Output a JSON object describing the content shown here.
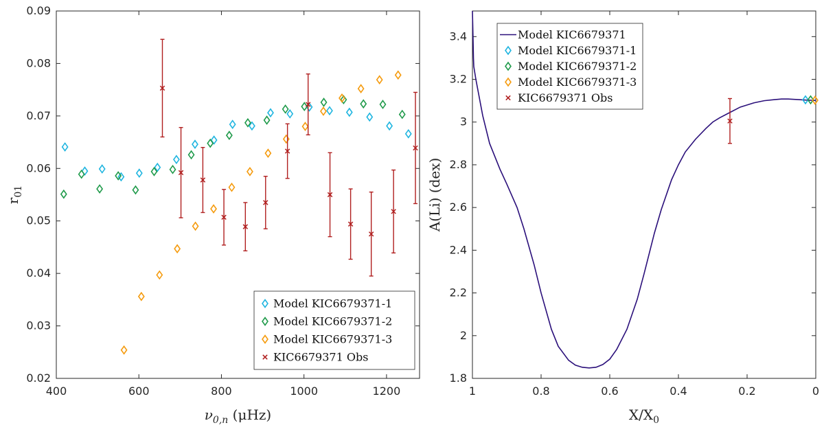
{
  "chart_data": [
    {
      "type": "scatter",
      "xlabel_main": "ν",
      "xlabel_sub": "0,n",
      "xlabel_unit": " (μHz)",
      "ylabel_main": "r",
      "ylabel_sub": "01",
      "xlim": [
        400,
        1280
      ],
      "ylim": [
        0.02,
        0.09
      ],
      "xticks": [
        400,
        600,
        800,
        1000,
        1200
      ],
      "yticks": [
        0.02,
        0.03,
        0.04,
        0.05,
        0.06,
        0.07,
        0.08,
        0.09
      ],
      "xtick_labels": [
        "400",
        "600",
        "800",
        "1000",
        "1200"
      ],
      "ytick_labels": [
        "0.02",
        "0.03",
        "0.04",
        "0.05",
        "0.06",
        "0.07",
        "0.08",
        "0.09"
      ],
      "grid": false,
      "legend_position": "bottom-right",
      "series": [
        {
          "name": "Model KIC6679371-1",
          "marker": "diamond",
          "color": "#1fb5e0",
          "x": [
            421,
            469,
            511,
            557,
            601,
            645,
            691,
            736,
            782,
            827,
            874,
            919,
            966,
            1013,
            1062,
            1110,
            1159,
            1207,
            1253
          ],
          "y": [
            0.0641,
            0.0595,
            0.0599,
            0.0584,
            0.0591,
            0.0602,
            0.0617,
            0.0646,
            0.0654,
            0.0684,
            0.0681,
            0.0706,
            0.0704,
            0.0717,
            0.071,
            0.0707,
            0.0698,
            0.0681,
            0.0666
          ]
        },
        {
          "name": "Model KIC6679371-2",
          "marker": "diamond",
          "color": "#1f9a4a",
          "x": [
            418,
            461,
            505,
            550,
            592,
            637,
            682,
            727,
            773,
            819,
            864,
            910,
            955,
            1001,
            1048,
            1096,
            1144,
            1191,
            1238
          ],
          "y": [
            0.0551,
            0.0589,
            0.0561,
            0.0586,
            0.0559,
            0.0594,
            0.0598,
            0.0626,
            0.0648,
            0.0663,
            0.0687,
            0.0692,
            0.0713,
            0.0718,
            0.0726,
            0.0731,
            0.0723,
            0.0722,
            0.0703
          ]
        },
        {
          "name": "Model KIC6679371-3",
          "marker": "diamond",
          "color": "#f59b0e",
          "x": [
            564,
            606,
            650,
            693,
            737,
            781,
            825,
            869,
            913,
            957,
            1003,
            1047,
            1092,
            1138,
            1183,
            1228
          ],
          "y": [
            0.0254,
            0.0356,
            0.0397,
            0.0447,
            0.049,
            0.0523,
            0.0564,
            0.0594,
            0.0629,
            0.0656,
            0.068,
            0.0709,
            0.0734,
            0.0752,
            0.0769,
            0.0778
          ]
        },
        {
          "name": "KIC6679371 Obs",
          "marker": "x",
          "color": "#b01e1e",
          "x": [
            657,
            702,
            755,
            806,
            858,
            907,
            960,
            1010,
            1063,
            1113,
            1163,
            1217,
            1270
          ],
          "y": [
            0.0753,
            0.0592,
            0.0578,
            0.0507,
            0.0489,
            0.0535,
            0.0633,
            0.0722,
            0.055,
            0.0494,
            0.0475,
            0.0518,
            0.0639
          ],
          "yerr": [
            0.0093,
            0.0086,
            0.0062,
            0.0053,
            0.0046,
            0.005,
            0.0052,
            0.0058,
            0.008,
            0.0067,
            0.008,
            0.0079,
            0.0106
          ]
        }
      ]
    },
    {
      "type": "line",
      "xlabel_main": "X/X",
      "xlabel_sub": "0",
      "ylabel": "A(Li) (dex)",
      "xlim": [
        1,
        0
      ],
      "ylim": [
        1.8,
        3.52
      ],
      "x_reversed": true,
      "xticks": [
        1,
        0.8,
        0.6,
        0.4,
        0.2,
        0
      ],
      "yticks": [
        1.8,
        2,
        2.2,
        2.4,
        2.6,
        2.8,
        3,
        3.2,
        3.4
      ],
      "xtick_labels": [
        "1",
        "0.8",
        "0.6",
        "0.4",
        "0.2",
        "0"
      ],
      "ytick_labels": [
        "1.8",
        "2",
        "2.2",
        "2.4",
        "2.6",
        "2.8",
        "3",
        "3.2",
        "3.4"
      ],
      "grid": false,
      "legend_position": "top-left",
      "series": [
        {
          "name": "Model KIC6679371",
          "marker": "line",
          "color": "#2a0f7a",
          "x": [
            1.0,
            0.999,
            0.998,
            0.997,
            0.996,
            0.99,
            0.97,
            0.95,
            0.92,
            0.9,
            0.87,
            0.85,
            0.82,
            0.8,
            0.77,
            0.75,
            0.72,
            0.7,
            0.68,
            0.66,
            0.64,
            0.62,
            0.6,
            0.58,
            0.55,
            0.52,
            0.5,
            0.47,
            0.45,
            0.42,
            0.4,
            0.38,
            0.35,
            0.32,
            0.3,
            0.28,
            0.25,
            0.22,
            0.2,
            0.18,
            0.15,
            0.12,
            0.1,
            0.08,
            0.05,
            0.03,
            0.01,
            0.0
          ],
          "y": [
            3.52,
            3.45,
            3.38,
            3.3,
            3.26,
            3.2,
            3.03,
            2.9,
            2.78,
            2.71,
            2.6,
            2.5,
            2.33,
            2.2,
            2.03,
            1.95,
            1.885,
            1.862,
            1.852,
            1.849,
            1.852,
            1.865,
            1.89,
            1.935,
            2.03,
            2.17,
            2.29,
            2.48,
            2.59,
            2.73,
            2.8,
            2.86,
            2.92,
            2.97,
            3.0,
            3.02,
            3.045,
            3.07,
            3.08,
            3.09,
            3.1,
            3.105,
            3.108,
            3.108,
            3.105,
            3.103,
            3.102,
            3.101
          ]
        },
        {
          "name": "Model KIC6679371-1",
          "marker": "diamond",
          "color": "#1fb5e0",
          "x": [
            0.03
          ],
          "y": [
            3.104
          ]
        },
        {
          "name": "Model KIC6679371-2",
          "marker": "diamond",
          "color": "#1f9a4a",
          "x": [
            0.015
          ],
          "y": [
            3.104
          ]
        },
        {
          "name": "Model KIC6679371-3",
          "marker": "diamond",
          "color": "#f59b0e",
          "x": [
            0.002
          ],
          "y": [
            3.102
          ]
        },
        {
          "name": "KIC6679371 Obs",
          "marker": "x",
          "color": "#b01e1e",
          "x": [
            0.25
          ],
          "y": [
            3.005
          ],
          "yerr": [
            0.105
          ]
        }
      ]
    }
  ]
}
